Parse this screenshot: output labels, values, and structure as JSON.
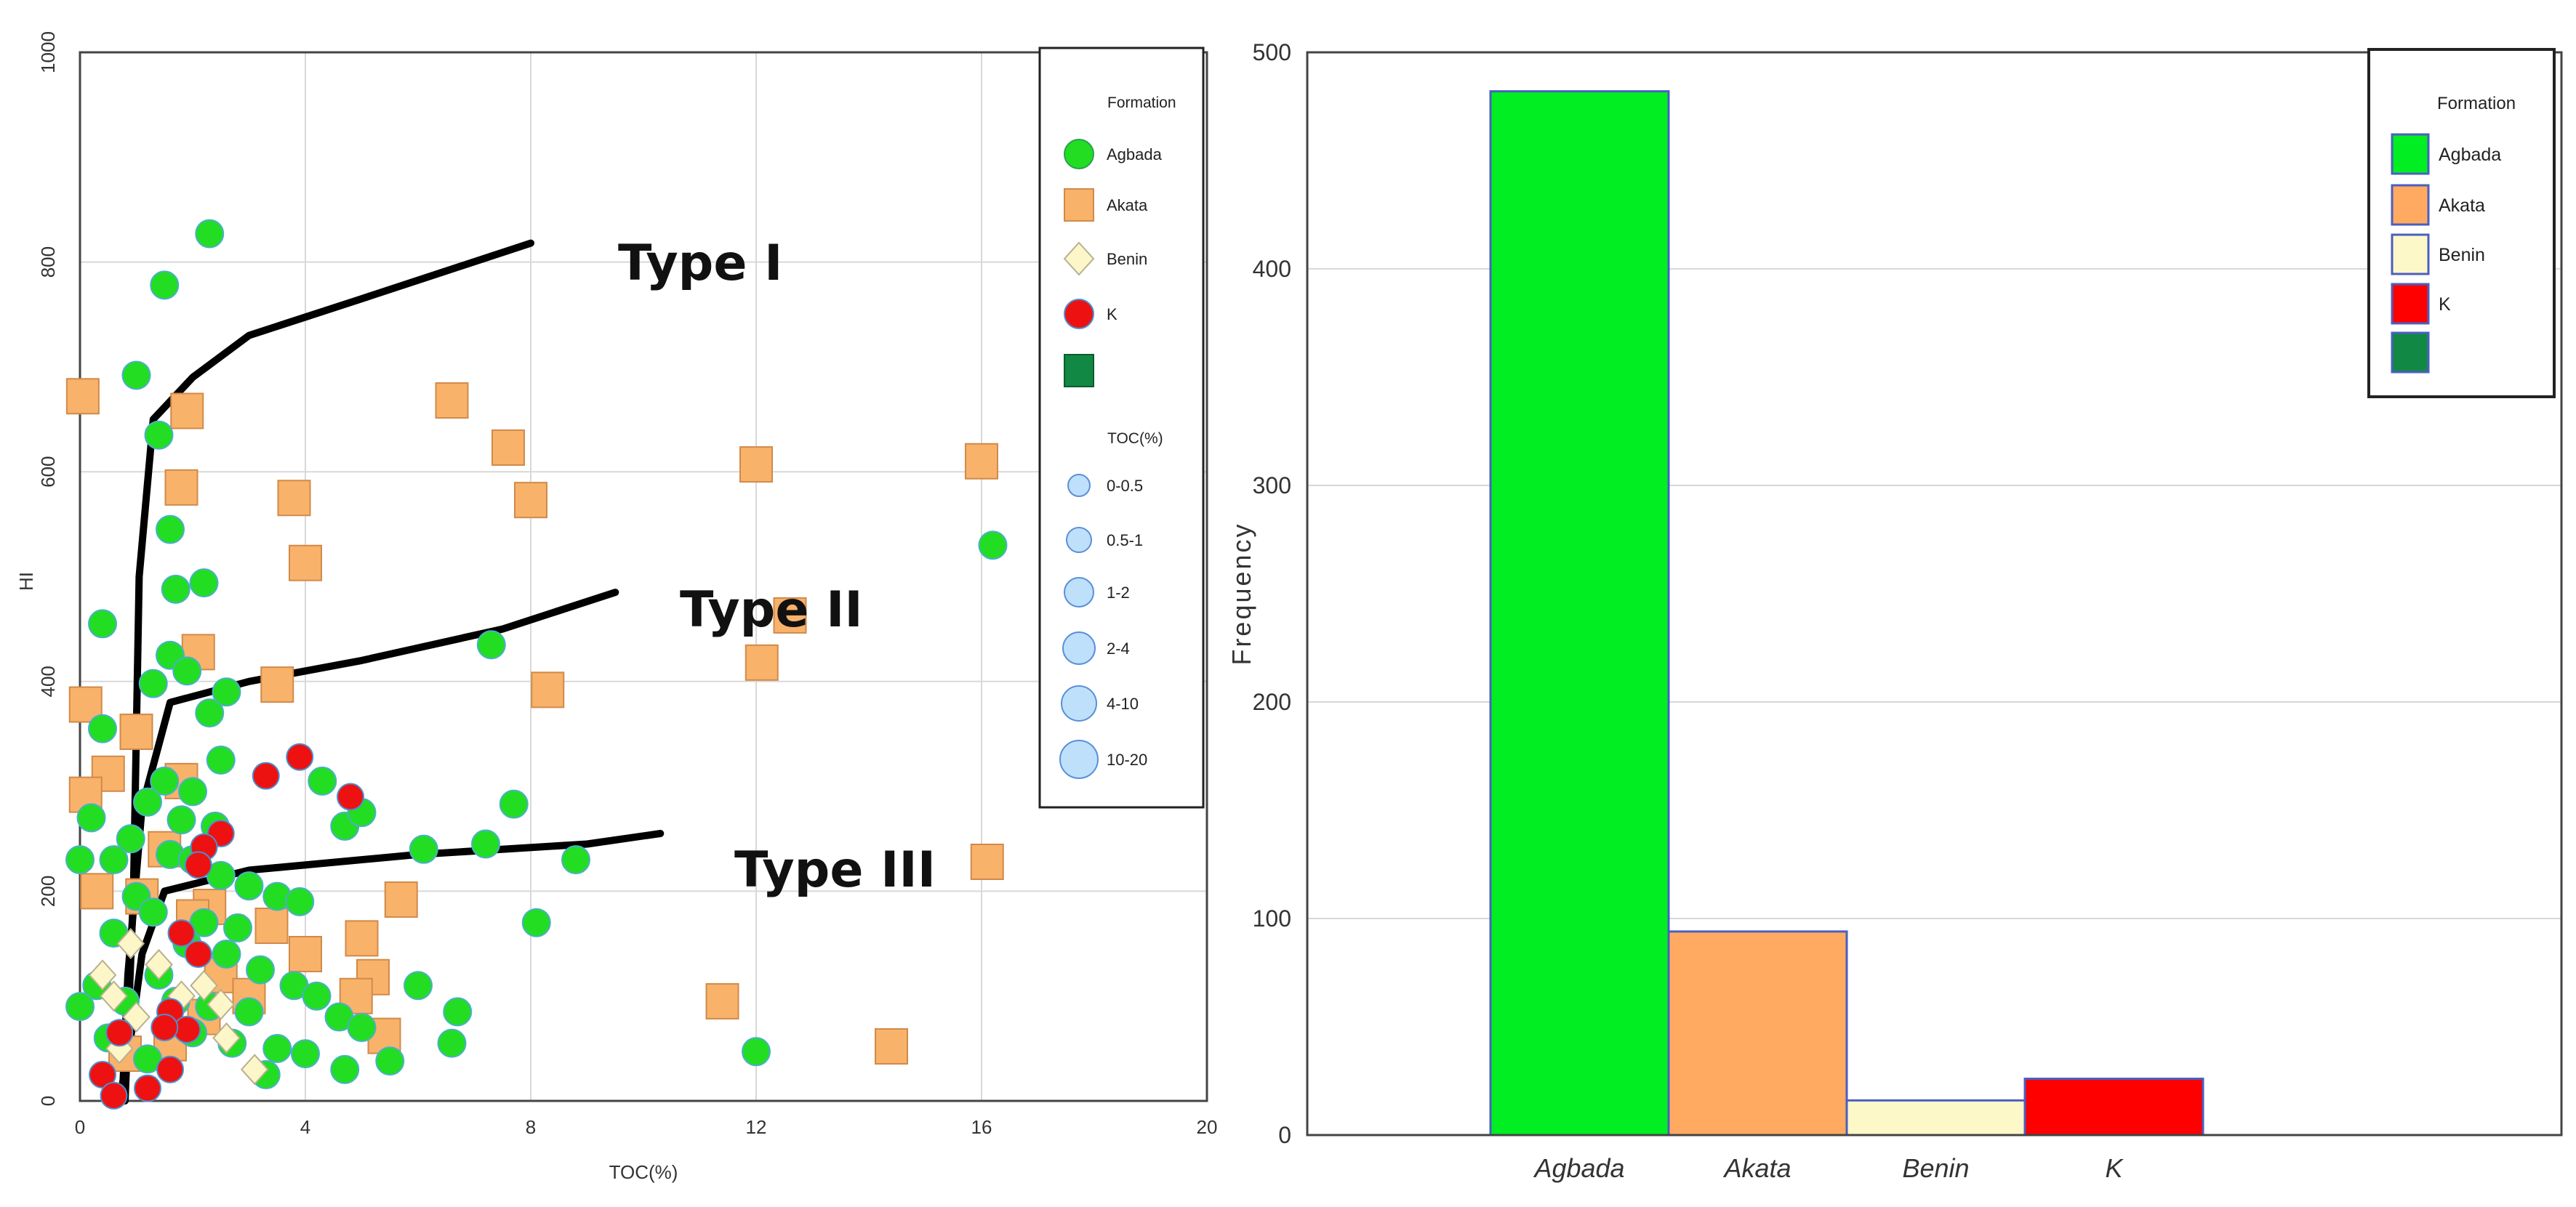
{
  "chart_data": [
    {
      "type": "scatter",
      "title": "",
      "xlabel": "TOC(%)",
      "ylabel": "HI",
      "xlim": [
        0,
        20
      ],
      "ylim": [
        0,
        1000
      ],
      "x_ticks": [
        0,
        4,
        8,
        12,
        16,
        20
      ],
      "y_ticks": [
        0,
        200,
        400,
        600,
        800,
        1000
      ],
      "grid": true,
      "legend": {
        "placement": "top-right",
        "title": "Formation",
        "entries": [
          {
            "label": "Agbada",
            "marker": "circle",
            "color": "#22dd22"
          },
          {
            "label": "Akata",
            "marker": "square",
            "color": "#f9b26a"
          },
          {
            "label": "Benin",
            "marker": "diamond",
            "color": "#fdf6c8"
          },
          {
            "label": "K",
            "marker": "circle",
            "color": "#ee1111"
          },
          {
            "label": "",
            "marker": "square",
            "color": "#118844"
          }
        ],
        "size_title": "TOC(%)",
        "size_entries": [
          "0-0.5",
          "0.5-1",
          "1-2",
          "2-4",
          "4-10",
          "10-20"
        ]
      },
      "kerogen_curves": [
        {
          "label": "Type I",
          "points": [
            [
              0.8,
              0
            ],
            [
              0.95,
              200
            ],
            [
              1.05,
              500
            ],
            [
              1.3,
              650
            ],
            [
              2,
              690
            ],
            [
              3,
              730
            ],
            [
              5,
              765
            ],
            [
              8,
              818
            ]
          ]
        },
        {
          "label": "Type II",
          "points": [
            [
              0.75,
              0
            ],
            [
              0.85,
              120
            ],
            [
              1.1,
              280
            ],
            [
              1.6,
              380
            ],
            [
              3,
              400
            ],
            [
              5,
              420
            ],
            [
              7.5,
              450
            ],
            [
              9.5,
              485
            ]
          ]
        },
        {
          "label": "Type III",
          "points": [
            [
              0.7,
              0
            ],
            [
              0.9,
              60
            ],
            [
              1.1,
              140
            ],
            [
              1.5,
              200
            ],
            [
              3,
              220
            ],
            [
              6,
              235
            ],
            [
              9,
              245
            ],
            [
              10.3,
              255
            ]
          ]
        }
      ],
      "series": [
        {
          "name": "Agbada",
          "points": [
            [
              2.3,
              827
            ],
            [
              1.5,
              778
            ],
            [
              1.0,
              692
            ],
            [
              1.4,
              635
            ],
            [
              1.6,
              545
            ],
            [
              2.2,
              494
            ],
            [
              1.7,
              488
            ],
            [
              0.4,
              455
            ],
            [
              1.3,
              398
            ],
            [
              1.6,
              425
            ],
            [
              1.9,
              410
            ],
            [
              2.3,
              370
            ],
            [
              2.5,
              325
            ],
            [
              1.5,
              305
            ],
            [
              2.0,
              295
            ],
            [
              1.2,
              285
            ],
            [
              1.8,
              268
            ],
            [
              2.4,
              262
            ],
            [
              0.9,
              250
            ],
            [
              1.6,
              235
            ],
            [
              2.0,
              230
            ],
            [
              2.5,
              215
            ],
            [
              3.0,
              205
            ],
            [
              3.5,
              195
            ],
            [
              1.0,
              195
            ],
            [
              1.3,
              180
            ],
            [
              2.2,
              170
            ],
            [
              2.8,
              165
            ],
            [
              0.6,
              160
            ],
            [
              1.9,
              150
            ],
            [
              2.6,
              140
            ],
            [
              3.2,
              125
            ],
            [
              1.4,
              120
            ],
            [
              3.8,
              110
            ],
            [
              4.2,
              100
            ],
            [
              1.7,
              95
            ],
            [
              2.3,
              90
            ],
            [
              3.0,
              85
            ],
            [
              4.6,
              80
            ],
            [
              5.0,
              70
            ],
            [
              2.0,
              65
            ],
            [
              2.7,
              55
            ],
            [
              3.5,
              50
            ],
            [
              4.0,
              45
            ],
            [
              1.2,
              40
            ],
            [
              5.5,
              38
            ],
            [
              4.7,
              30
            ],
            [
              3.3,
              25
            ],
            [
              0.5,
              60
            ],
            [
              0.8,
              95
            ],
            [
              0.3,
              110
            ],
            [
              0.6,
              230
            ],
            [
              7.3,
              435
            ],
            [
              7.7,
              283
            ],
            [
              4.3,
              305
            ],
            [
              4.7,
              262
            ],
            [
              5.0,
              275
            ],
            [
              8.8,
              230
            ],
            [
              8.1,
              170
            ],
            [
              6.1,
              240
            ],
            [
              7.2,
              245
            ],
            [
              6.0,
              110
            ],
            [
              6.7,
              85
            ],
            [
              6.6,
              55
            ],
            [
              12.0,
              47
            ],
            [
              16.2,
              530
            ],
            [
              0.4,
              355
            ],
            [
              0.2,
              270
            ],
            [
              0.0,
              230
            ],
            [
              0.0,
              90
            ],
            [
              2.6,
              390
            ],
            [
              3.9,
              190
            ]
          ]
        },
        {
          "name": "Akata",
          "points": [
            [
              0.05,
              672
            ],
            [
              1.9,
              658
            ],
            [
              6.6,
              668
            ],
            [
              7.6,
              623
            ],
            [
              8.0,
              573
            ],
            [
              1.8,
              585
            ],
            [
              3.8,
              575
            ],
            [
              4.0,
              513
            ],
            [
              2.1,
              428
            ],
            [
              3.5,
              397
            ],
            [
              8.3,
              392
            ],
            [
              12.0,
              607
            ],
            [
              16.0,
              610
            ],
            [
              12.6,
              463
            ],
            [
              12.1,
              418
            ],
            [
              16.1,
              228
            ],
            [
              0.1,
              378
            ],
            [
              0.5,
              312
            ],
            [
              1.0,
              352
            ],
            [
              1.8,
              305
            ],
            [
              0.1,
              292
            ],
            [
              2.3,
              185
            ],
            [
              3.4,
              167
            ],
            [
              4.0,
              140
            ],
            [
              5.0,
              155
            ],
            [
              5.2,
              118
            ],
            [
              4.9,
              100
            ],
            [
              5.4,
              62
            ],
            [
              5.7,
              192
            ],
            [
              11.4,
              95
            ],
            [
              14.4,
              52
            ],
            [
              1.5,
              240
            ],
            [
              1.1,
              195
            ],
            [
              2.0,
              175
            ],
            [
              2.5,
              120
            ],
            [
              3.0,
              100
            ],
            [
              2.2,
              80
            ],
            [
              1.6,
              55
            ],
            [
              0.8,
              45
            ],
            [
              0.3,
              200
            ]
          ]
        },
        {
          "name": "Benin",
          "points": [
            [
              0.4,
              120
            ],
            [
              0.6,
              100
            ],
            [
              1.0,
              80
            ],
            [
              1.8,
              100
            ],
            [
              2.5,
              92
            ],
            [
              3.1,
              30
            ],
            [
              0.7,
              50
            ],
            [
              1.4,
              130
            ],
            [
              2.2,
              110
            ],
            [
              0.9,
              150
            ],
            [
              2.6,
              60
            ]
          ]
        },
        {
          "name": "K",
          "points": [
            [
              3.9,
              328
            ],
            [
              4.8,
              290
            ],
            [
              3.3,
              310
            ],
            [
              2.5,
              255
            ],
            [
              2.2,
              242
            ],
            [
              2.1,
              225
            ],
            [
              1.8,
              160
            ],
            [
              2.1,
              140
            ],
            [
              1.6,
              85
            ],
            [
              1.9,
              68
            ],
            [
              1.5,
              70
            ],
            [
              1.6,
              30
            ],
            [
              1.2,
              12
            ],
            [
              0.7,
              65
            ],
            [
              0.4,
              25
            ],
            [
              0.6,
              5
            ]
          ]
        }
      ],
      "annotations": [
        "Type I",
        "Type II",
        "Type III"
      ]
    },
    {
      "type": "bar",
      "title": "",
      "xlabel": "",
      "ylabel": "Frequency",
      "ylim": [
        0,
        500
      ],
      "y_ticks": [
        0,
        100,
        200,
        300,
        400,
        500
      ],
      "grid": true,
      "categories": [
        "Agbada",
        "Akata",
        "Benin",
        "K"
      ],
      "values": [
        482,
        94,
        16,
        26
      ],
      "colors": [
        "#00ee22",
        "#ffaa60",
        "#fdf8c8",
        "#ff0000"
      ],
      "legend": {
        "placement": "top-right",
        "title": "Formation",
        "entries": [
          {
            "label": "Agbada",
            "color": "#00ee22"
          },
          {
            "label": "Akata",
            "color": "#ffaa60"
          },
          {
            "label": "Benin",
            "color": "#fdf8c8"
          },
          {
            "label": "K",
            "color": "#ff0000"
          },
          {
            "label": "",
            "color": "#118844"
          }
        ]
      }
    }
  ]
}
